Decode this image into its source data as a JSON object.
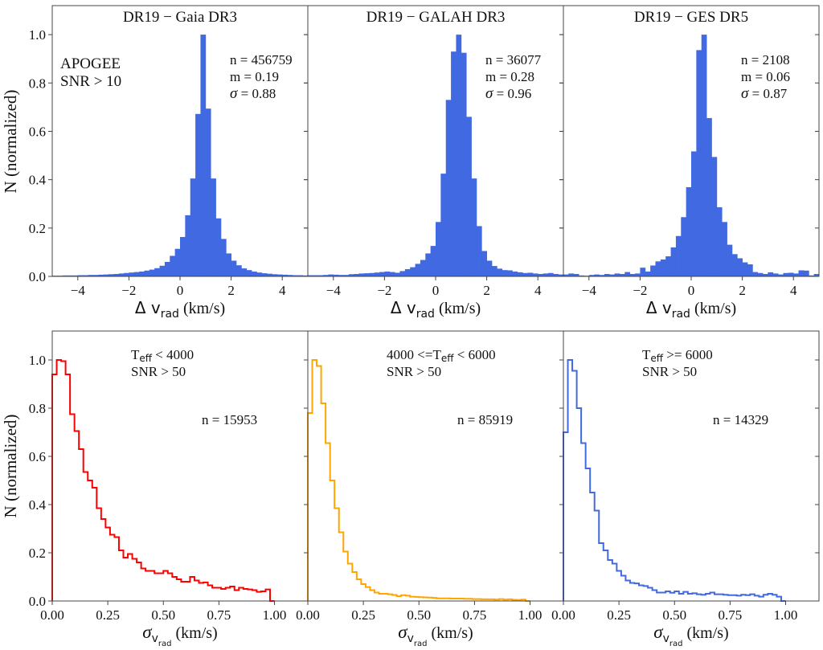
{
  "figure": {
    "ylabel": "N (normalized)"
  },
  "chart_data": [
    {
      "type": "bar",
      "panel": "top-left",
      "title": "DR19 − Gaia DR3",
      "xlabel_main": "Δ v",
      "xlabel_sub": "rad",
      "xlabel_unit": "(km/s)",
      "ylabel": "N (normalized)",
      "xlim": [
        -5,
        5
      ],
      "ylim": [
        0,
        1.12
      ],
      "xticks": [
        -4,
        -2,
        0,
        2,
        4
      ],
      "xtick_labels": [
        "−4",
        "−2",
        "0",
        "2",
        "4"
      ],
      "yticks": [
        0,
        0.2,
        0.4,
        0.6,
        0.8,
        1.0
      ],
      "ytick_labels": [
        "0.0",
        "0.2",
        "0.4",
        "0.6",
        "0.8",
        "1.0"
      ],
      "color": "#4169e1",
      "annotation_left": [
        "APOGEE",
        "SNR > 10"
      ],
      "stats": [
        "n = 456759",
        "m = 0.19",
        "= 0.88"
      ],
      "bin_width": 0.2,
      "bin_start": -5.0,
      "values": [
        0.003,
        0.003,
        0.004,
        0.004,
        0.004,
        0.005,
        0.005,
        0.006,
        0.006,
        0.007,
        0.008,
        0.009,
        0.01,
        0.012,
        0.014,
        0.016,
        0.018,
        0.02,
        0.024,
        0.028,
        0.034,
        0.044,
        0.06,
        0.085,
        0.114,
        0.163,
        0.253,
        0.405,
        0.672,
        1.0,
        0.694,
        0.405,
        0.24,
        0.155,
        0.095,
        0.065,
        0.046,
        0.033,
        0.026,
        0.02,
        0.016,
        0.013,
        0.011,
        0.009,
        0.008,
        0.007,
        0.006,
        0.005,
        0.005,
        0.004
      ]
    },
    {
      "type": "bar",
      "panel": "top-middle",
      "title": "DR19 − GALAH DR3",
      "xlabel_main": "Δ v",
      "xlabel_sub": "rad",
      "xlabel_unit": "(km/s)",
      "xlim": [
        -5,
        5
      ],
      "ylim": [
        0,
        1.12
      ],
      "xticks": [
        -4,
        -2,
        0,
        2,
        4
      ],
      "xtick_labels": [
        "−4",
        "−2",
        "0",
        "2",
        "4"
      ],
      "color": "#4169e1",
      "stats": [
        "n = 36077",
        "m = 0.28",
        "= 0.96"
      ],
      "bin_width": 0.2,
      "bin_start": -5.0,
      "values": [
        0.005,
        0.005,
        0.005,
        0.006,
        0.008,
        0.007,
        0.006,
        0.006,
        0.009,
        0.01,
        0.012,
        0.013,
        0.014,
        0.016,
        0.018,
        0.02,
        0.018,
        0.015,
        0.022,
        0.03,
        0.038,
        0.052,
        0.068,
        0.095,
        0.126,
        0.225,
        0.425,
        0.73,
        0.93,
        1.0,
        0.925,
        0.66,
        0.405,
        0.208,
        0.105,
        0.065,
        0.043,
        0.032,
        0.026,
        0.025,
        0.02,
        0.017,
        0.014,
        0.015,
        0.012,
        0.01,
        0.012,
        0.014,
        0.01,
        0.008
      ]
    },
    {
      "type": "bar",
      "panel": "top-right",
      "title": "DR19 − GES DR5",
      "xlabel_main": "Δ v",
      "xlabel_sub": "rad",
      "xlabel_unit": "(km/s)",
      "xlim": [
        -5,
        5
      ],
      "ylim": [
        0,
        1.12
      ],
      "xticks": [
        -4,
        -2,
        0,
        2,
        4
      ],
      "xtick_labels": [
        "−4",
        "−2",
        "0",
        "2",
        "4"
      ],
      "color": "#4169e1",
      "stats": [
        "n = 2108",
        "m = 0.06",
        "= 0.87"
      ],
      "bin_width": 0.2,
      "bin_start": -5.0,
      "values": [
        0.008,
        0.012,
        0.01,
        0.004,
        0.003,
        0.006,
        0.008,
        0.006,
        0.01,
        0.008,
        0.012,
        0.01,
        0.018,
        0.01,
        0.012,
        0.036,
        0.02,
        0.045,
        0.062,
        0.07,
        0.083,
        0.12,
        0.167,
        0.245,
        0.369,
        0.517,
        0.936,
        1.0,
        0.655,
        0.494,
        0.286,
        0.225,
        0.131,
        0.092,
        0.075,
        0.058,
        0.05,
        0.018,
        0.014,
        0.01,
        0.017,
        0.012,
        0.008,
        0.014,
        0.015,
        0.012,
        0.025,
        0.024,
        0.004,
        0.01
      ]
    },
    {
      "type": "line",
      "style": "step",
      "panel": "bottom-left",
      "xlabel_main": "σ",
      "xlabel_sub": "v",
      "xlabel_subsub": "rad",
      "xlabel_unit": "(km/s)",
      "ylabel": "N (normalized)",
      "xlim": [
        0,
        1.15
      ],
      "ylim": [
        0,
        1.12
      ],
      "xticks": [
        0,
        0.25,
        0.5,
        0.75,
        1.0
      ],
      "xtick_labels": [
        "0.00",
        "0.25",
        "0.50",
        "0.75",
        "1.00"
      ],
      "yticks": [
        0,
        0.2,
        0.4,
        0.6,
        0.8,
        1.0
      ],
      "ytick_labels": [
        "0.0",
        "0.2",
        "0.4",
        "0.6",
        "0.8",
        "1.0"
      ],
      "color": "#ff0000",
      "annotation": {
        "teff_prefix": "",
        "teff_T": "T",
        "teff_sub": "eff",
        "teff_suffix": " < 4000",
        "snr": "SNR > 50"
      },
      "stats": [
        "n = 15953"
      ],
      "bin_width": 0.02,
      "bin_start": 0.0,
      "values": [
        0.94,
        1.0,
        0.995,
        0.94,
        0.775,
        0.705,
        0.63,
        0.535,
        0.5,
        0.47,
        0.385,
        0.34,
        0.305,
        0.275,
        0.265,
        0.21,
        0.18,
        0.195,
        0.175,
        0.16,
        0.135,
        0.125,
        0.125,
        0.115,
        0.115,
        0.125,
        0.115,
        0.1,
        0.09,
        0.08,
        0.08,
        0.1,
        0.085,
        0.075,
        0.077,
        0.065,
        0.055,
        0.055,
        0.05,
        0.055,
        0.06,
        0.045,
        0.055,
        0.05,
        0.048,
        0.045,
        0.038,
        0.04,
        0.048,
        0.0
      ]
    },
    {
      "type": "line",
      "style": "step",
      "panel": "bottom-middle",
      "xlabel_main": "σ",
      "xlabel_sub": "v",
      "xlabel_subsub": "rad",
      "xlabel_unit": "(km/s)",
      "xlim": [
        0,
        1.15
      ],
      "ylim": [
        0,
        1.12
      ],
      "xticks": [
        0,
        0.25,
        0.5,
        0.75,
        1.0
      ],
      "xtick_labels": [
        "0.00",
        "0.25",
        "0.50",
        "0.75",
        "1.00"
      ],
      "color": "#ffa500",
      "annotation": {
        "teff_prefix": "4000 <=",
        "teff_T": "T",
        "teff_sub": "eff",
        "teff_suffix": " < 6000",
        "snr": "SNR > 50"
      },
      "stats": [
        "n = 85919"
      ],
      "bin_width": 0.02,
      "bin_start": 0.0,
      "values": [
        0.78,
        1.0,
        0.975,
        0.82,
        0.655,
        0.5,
        0.385,
        0.285,
        0.205,
        0.155,
        0.12,
        0.09,
        0.07,
        0.058,
        0.045,
        0.035,
        0.03,
        0.03,
        0.028,
        0.025,
        0.02,
        0.024,
        0.022,
        0.018,
        0.017,
        0.016,
        0.015,
        0.014,
        0.013,
        0.011,
        0.011,
        0.011,
        0.01,
        0.01,
        0.01,
        0.009,
        0.009,
        0.008,
        0.008,
        0.007,
        0.007,
        0.007,
        0.006,
        0.008,
        0.006,
        0.007,
        0.005,
        0.004,
        0.006,
        0.0
      ]
    },
    {
      "type": "line",
      "style": "step",
      "panel": "bottom-right",
      "xlabel_main": "σ",
      "xlabel_sub": "v",
      "xlabel_subsub": "rad",
      "xlabel_unit": "(km/s)",
      "xlim": [
        0,
        1.15
      ],
      "ylim": [
        0,
        1.12
      ],
      "xticks": [
        0,
        0.25,
        0.5,
        0.75,
        1.0
      ],
      "xtick_labels": [
        "0.00",
        "0.25",
        "0.50",
        "0.75",
        "1.00"
      ],
      "color": "#4169e1",
      "annotation": {
        "teff_prefix": "",
        "teff_T": "T",
        "teff_sub": "eff",
        "teff_suffix": " >= 6000",
        "snr": "SNR > 50"
      },
      "stats": [
        "n = 14329"
      ],
      "bin_width": 0.02,
      "bin_start": 0.0,
      "values": [
        0.7,
        1.0,
        0.955,
        0.8,
        0.655,
        0.55,
        0.45,
        0.375,
        0.24,
        0.21,
        0.17,
        0.155,
        0.125,
        0.105,
        0.085,
        0.075,
        0.073,
        0.065,
        0.062,
        0.055,
        0.045,
        0.035,
        0.035,
        0.04,
        0.034,
        0.04,
        0.03,
        0.038,
        0.03,
        0.032,
        0.028,
        0.026,
        0.03,
        0.035,
        0.028,
        0.028,
        0.026,
        0.024,
        0.024,
        0.022,
        0.026,
        0.024,
        0.028,
        0.022,
        0.018,
        0.026,
        0.03,
        0.026,
        0.018,
        0.0
      ]
    }
  ]
}
